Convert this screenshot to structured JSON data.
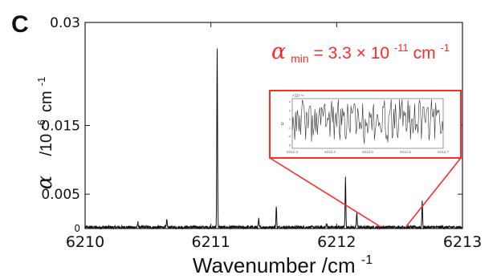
{
  "panel_label": "C",
  "accent_color": "#ff2a2a",
  "chart_data": {
    "type": "line",
    "title": "",
    "xlabel_main": "Wavenumber /cm",
    "xlabel_exp": "-1",
    "ylabel_symbol": "α",
    "ylabel_unit_base": "/10",
    "ylabel_unit_exp": "-6",
    "ylabel_unit_tail": "cm",
    "ylabel_unit_tail_exp": "-1",
    "xlim": [
      6210,
      6213
    ],
    "ylim": [
      0,
      0.03
    ],
    "x_ticks": [
      "6210",
      "6211",
      "6212",
      "6213"
    ],
    "y_ticks": [
      {
        "value": 0,
        "label": "0"
      },
      {
        "value": 0.005,
        "label": "0.005"
      },
      {
        "value": 0.015,
        "label": "0.015"
      },
      {
        "value": 0.03,
        "label": "0.03"
      }
    ],
    "grid": false,
    "noise_floor": 0.0003,
    "peaks": [
      {
        "x": 6210.42,
        "y": 0.0007
      },
      {
        "x": 6210.65,
        "y": 0.0011
      },
      {
        "x": 6211.05,
        "y": 0.0262
      },
      {
        "x": 6211.38,
        "y": 0.0012
      },
      {
        "x": 6211.52,
        "y": 0.003
      },
      {
        "x": 6211.92,
        "y": 0.0006
      },
      {
        "x": 6212.07,
        "y": 0.0072
      },
      {
        "x": 6212.16,
        "y": 0.0022
      },
      {
        "x": 6212.68,
        "y": 0.0038
      }
    ],
    "annotation": {
      "symbol": "α",
      "subscript": "min",
      "text": " = 3.3 × 10",
      "exp": "-11",
      "unit": " cm",
      "unit_exp": "-1"
    },
    "inset": {
      "type": "line",
      "zoom_xlim": [
        6212.35,
        6212.55
      ],
      "x_ticks": [
        "6212.3",
        "6212.4",
        "6212.5",
        "6212.6",
        "6212.7"
      ],
      "y_ticks": [
        "4",
        "2",
        "0",
        "-2",
        "-4",
        "-6"
      ],
      "ylabel": "α",
      "scale_label": "×10⁻¹¹"
    }
  }
}
